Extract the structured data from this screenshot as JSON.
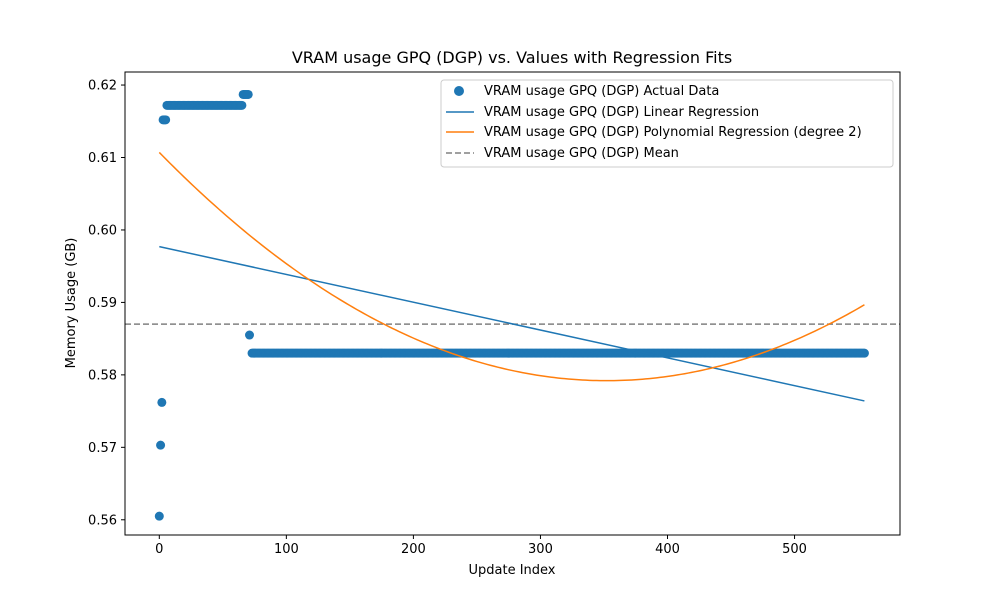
{
  "chart_data": {
    "type": "scatter",
    "title": "VRAM usage GPQ (DGP) vs. Values with Regression Fits",
    "xlabel": "Update Index",
    "ylabel": "Memory Usage (GB)",
    "xlim": [
      -27,
      583
    ],
    "ylim": [
      0.5579,
      0.6218
    ],
    "xticks": [
      0,
      100,
      200,
      300,
      400,
      500
    ],
    "yticks": [
      0.56,
      0.57,
      0.58,
      0.59,
      0.6,
      0.61,
      0.62
    ],
    "ytick_labels": [
      "0.56",
      "0.57",
      "0.58",
      "0.59",
      "0.60",
      "0.61",
      "0.62"
    ],
    "grid": false,
    "legend_position": "upper-right",
    "colors": {
      "actual": "#1f77b4",
      "linear": "#1f77b4",
      "poly": "#ff7f0e",
      "mean": "#808080"
    },
    "actual_data": {
      "name": "VRAM usage GPQ (DGP) Actual Data",
      "points": [
        {
          "x": 0,
          "y": 0.5605
        },
        {
          "x": 1,
          "y": 0.5703
        },
        {
          "x": 2,
          "y": 0.5762
        },
        {
          "x": 3,
          "y": 0.6152
        },
        {
          "x": 4,
          "y": 0.6152
        },
        {
          "x": 5,
          "y": 0.6152
        }
      ],
      "runs": [
        {
          "x_start": 6,
          "x_end": 65,
          "y": 0.6172
        },
        {
          "x_start": 66,
          "x_end": 70,
          "y": 0.6187
        },
        {
          "x_start": 73,
          "x_end": 555,
          "y": 0.583
        }
      ],
      "extra_points": [
        {
          "x": 71,
          "y": 0.5855
        }
      ]
    },
    "linear_regression": {
      "name": "VRAM usage GPQ (DGP) Linear Regression",
      "x_start": 0,
      "x_end": 555,
      "y_start": 0.5977,
      "y_end": 0.5764
    },
    "poly_regression": {
      "name": "VRAM usage GPQ (DGP) Polynomial Regression (degree 2)",
      "degree": 2,
      "x_start": 0,
      "x_end": 555,
      "vertex_x": 352,
      "vertex_y": 0.5792,
      "y_at_start": 0.6107
    },
    "mean": {
      "name": "VRAM usage GPQ (DGP) Mean",
      "y": 0.587
    }
  }
}
